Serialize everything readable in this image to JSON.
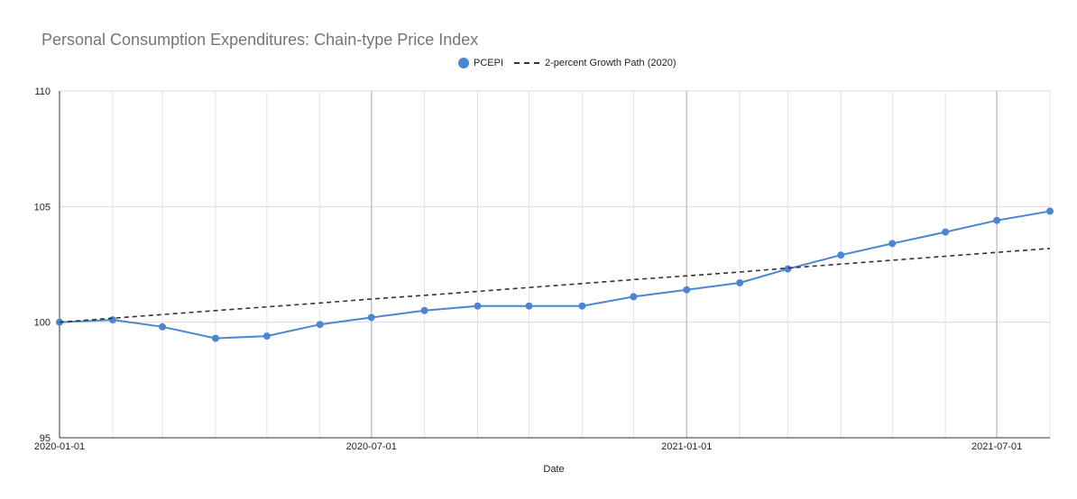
{
  "chart_data": {
    "type": "line",
    "title": "Personal Consumption Expenditures: Chain-type Price Index",
    "xlabel": "Date",
    "ylabel": "",
    "ylim": [
      95,
      110
    ],
    "yticks": [
      95,
      100,
      105,
      110
    ],
    "xlim": [
      "2020-01-01",
      "2021-08-01"
    ],
    "xticks": [
      "2020-01-01",
      "2020-07-01",
      "2021-01-01",
      "2021-07-01"
    ],
    "grid": true,
    "legend_position": "top-center",
    "x": [
      "2020-01-01",
      "2020-02-01",
      "2020-03-01",
      "2020-04-01",
      "2020-05-01",
      "2020-06-01",
      "2020-07-01",
      "2020-08-01",
      "2020-09-01",
      "2020-10-01",
      "2020-11-01",
      "2020-12-01",
      "2021-01-01",
      "2021-02-01",
      "2021-03-01",
      "2021-04-01",
      "2021-05-01",
      "2021-06-01",
      "2021-07-01",
      "2021-08-01"
    ],
    "series": [
      {
        "name": "PCEPI",
        "style": "line-markers",
        "color": "#4a86d4",
        "values": [
          100.0,
          100.1,
          99.8,
          99.3,
          99.4,
          99.9,
          100.2,
          100.5,
          100.7,
          100.7,
          100.7,
          101.1,
          101.4,
          101.7,
          102.3,
          102.9,
          103.4,
          103.9,
          104.4,
          104.8
        ]
      },
      {
        "name": "2-percent Growth Path (2020)",
        "style": "dashed",
        "color": "#333333",
        "values": [
          100.0,
          100.17,
          100.33,
          100.5,
          100.66,
          100.83,
          101.0,
          101.16,
          101.33,
          101.5,
          101.67,
          101.84,
          102.0,
          102.17,
          102.34,
          102.51,
          102.68,
          102.85,
          103.02,
          103.19
        ]
      }
    ]
  }
}
